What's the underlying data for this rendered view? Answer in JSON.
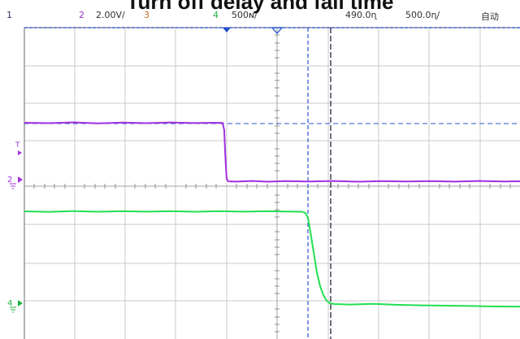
{
  "slide_title": "Turn off delay and fall time",
  "status_bar": {
    "ch1_label": "1",
    "ch2_label": "2",
    "ch2_scale": "2.00V/",
    "ch3_label": "3",
    "ch4_label": "4",
    "timebase": "500ɴ/",
    "trigger_pos": "490.0ɳ",
    "sample_rate": "500.0ɳ/",
    "acq_mode": "自动"
  },
  "markers": {
    "trigger_marker": "T",
    "ch2_ground": "2",
    "ch4_ground": "4"
  },
  "colors": {
    "ch2": "#a030e0",
    "ch4": "#20e050",
    "cursor": "#2a55d0",
    "grid": "#c8c8c8",
    "frame": "#808080"
  },
  "traces": {
    "ch2_gate_voltage": {
      "high_to_low_edge": "falling",
      "state_before": "high",
      "state_after": "low"
    },
    "ch4_output_voltage": {
      "high_to_low_edge": "falling",
      "state_before": "high",
      "state_after": "low"
    }
  }
}
